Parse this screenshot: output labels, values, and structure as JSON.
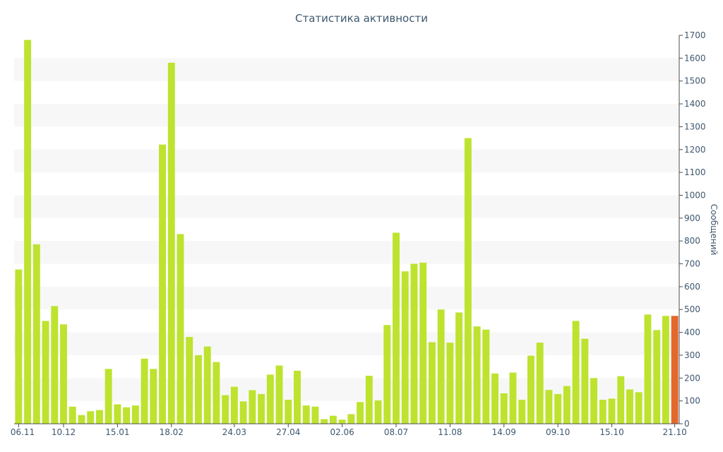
{
  "chart_data": {
    "type": "bar",
    "title": "Статистика активности",
    "ylabel": "Сообщений",
    "xlabel": "",
    "ylim": [
      0,
      1700
    ],
    "y_ticks": [
      0,
      100,
      200,
      300,
      400,
      500,
      600,
      700,
      800,
      900,
      1000,
      1100,
      1200,
      1300,
      1400,
      1500,
      1600,
      1700
    ],
    "x_tick_labels": [
      {
        "label": "06.11",
        "index": 0
      },
      {
        "label": "10.12",
        "index": 5
      },
      {
        "label": "15.01",
        "index": 11
      },
      {
        "label": "18.02",
        "index": 17
      },
      {
        "label": "24.03",
        "index": 24
      },
      {
        "label": "27.04",
        "index": 30
      },
      {
        "label": "02.06",
        "index": 36
      },
      {
        "label": "08.07",
        "index": 42
      },
      {
        "label": "11.08",
        "index": 48
      },
      {
        "label": "14.09",
        "index": 54
      },
      {
        "label": "09.10",
        "index": 60
      },
      {
        "label": "15.10",
        "index": 66
      },
      {
        "label": "21.10",
        "index": 73
      }
    ],
    "grid": "alternating horizontal bands",
    "y_axis_position": "right",
    "bar_color": "#bde32f",
    "highlight_color": "#e4672c",
    "highlight_last": true,
    "values": [
      675,
      1680,
      785,
      450,
      515,
      435,
      75,
      38,
      55,
      60,
      240,
      85,
      72,
      80,
      285,
      240,
      1222,
      1580,
      830,
      380,
      300,
      338,
      270,
      125,
      162,
      98,
      147,
      130,
      215,
      255,
      105,
      232,
      80,
      75,
      20,
      35,
      18,
      42,
      95,
      210,
      102,
      432,
      836,
      667,
      700,
      705,
      357,
      500,
      355,
      487,
      1250,
      426,
      412,
      220,
      133,
      224,
      105,
      298,
      355,
      148,
      130,
      165,
      450,
      372,
      200,
      105,
      110,
      208,
      150,
      138,
      478,
      410,
      472,
      472
    ]
  },
  "colors": {
    "text": "#3e576f",
    "band": "#f7f7f7",
    "axis": "#4d4d4d"
  }
}
